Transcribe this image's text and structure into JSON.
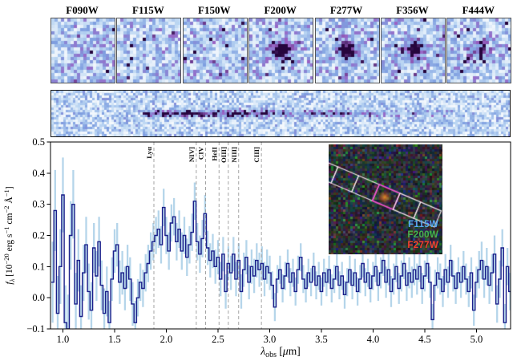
{
  "cutouts": {
    "filters": [
      {
        "label": "F090W",
        "source_strength": 0
      },
      {
        "label": "F115W",
        "source_strength": 0
      },
      {
        "label": "F150W",
        "source_strength": 0
      },
      {
        "label": "F200W",
        "source_strength": 1.15
      },
      {
        "label": "F277W",
        "source_strength": 1.05
      },
      {
        "label": "F356W",
        "source_strength": 0.95
      },
      {
        "label": "F444W",
        "source_strength": 0.55
      }
    ],
    "colormap": [
      "#ffffff",
      "#b8d4f2",
      "#7f9fe0",
      "#9a62c4",
      "#26053d"
    ]
  },
  "spectrum_2d": {
    "trace_segments": [
      [
        112,
        267,
        0.85
      ],
      [
        267,
        407,
        0.5
      ],
      [
        407,
        500,
        0.25
      ]
    ]
  },
  "inset": {
    "legend": [
      {
        "label": "F115W",
        "color": "#58aaf0"
      },
      {
        "label": "F200W",
        "color": "#46b04e"
      },
      {
        "label": "F277W",
        "color": "#f4402c"
      }
    ],
    "slit_color": "#f2e4ea",
    "highlight_color": "#ee52cc",
    "source_color": "#e0782a"
  },
  "chart_data": {
    "type": "line",
    "title": "",
    "xlabel": "λobs [μm]",
    "ylabel": "fλ [10−20 erg s−1 cm−2 Å−1]",
    "xlabel_segments": [
      {
        "t": "λ",
        "italic": true
      },
      {
        "t": "obs",
        "sub": true
      },
      {
        "t": " ["
      },
      {
        "t": "μ",
        "italic": true
      },
      {
        "t": "m]"
      }
    ],
    "ylabel_segments": [
      {
        "t": "f",
        "italic": true
      },
      {
        "t": "λ",
        "sub": true,
        "italic": true
      },
      {
        "t": " [10"
      },
      {
        "t": "−20",
        "sup": true
      },
      {
        "t": " erg s"
      },
      {
        "t": "−1",
        "sup": true
      },
      {
        "t": " cm"
      },
      {
        "t": "−2",
        "sup": true
      },
      {
        "t": " Å"
      },
      {
        "t": "−1",
        "sup": true
      },
      {
        "t": "]"
      }
    ],
    "xlim": [
      0.88,
      5.33
    ],
    "ylim": [
      -0.1,
      0.5
    ],
    "xticks": [
      1.0,
      1.5,
      2.0,
      2.5,
      3.0,
      3.5,
      4.0,
      4.5,
      5.0
    ],
    "yticks": [
      -0.1,
      0.0,
      0.1,
      0.2,
      0.3,
      0.4,
      0.5
    ],
    "grid": false,
    "legend_position": "inset image, lower right",
    "line_color": "#1b1f8a",
    "error_color": "#b5d5ea",
    "dashed_line_color": "#9a9a9a",
    "emission_lines": [
      {
        "label": "Lyα",
        "wavelength_um": 1.88
      },
      {
        "label": "NIV]",
        "wavelength_um": 2.29
      },
      {
        "label": "CIV",
        "wavelength_um": 2.38
      },
      {
        "label": "HeII",
        "wavelength_um": 2.51
      },
      {
        "label": "OIII]",
        "wavelength_um": 2.6
      },
      {
        "label": "NIII]",
        "wavelength_um": 2.7
      },
      {
        "label": "CIII]",
        "wavelength_um": 2.92
      }
    ],
    "x_start_um": 0.9,
    "x_step_um": 0.025,
    "flux": [
      0.05,
      0.28,
      -0.05,
      0.1,
      0.33,
      -0.08,
      -0.1,
      0.2,
      0.3,
      -0.02,
      0.12,
      -0.06,
      0.08,
      0.17,
      0.02,
      -0.04,
      0.16,
      0.07,
      0.18,
      0.04,
      -0.05,
      0.02,
      -0.08,
      0.06,
      0.15,
      0.17,
      0.05,
      0.08,
      0.03,
      0.1,
      0.06,
      -0.02,
      -0.08,
      0.0,
      0.05,
      0.03,
      0.08,
      0.11,
      0.15,
      0.18,
      0.2,
      0.22,
      0.17,
      0.29,
      0.2,
      0.15,
      0.24,
      0.26,
      0.18,
      0.22,
      0.15,
      0.2,
      0.13,
      0.17,
      0.21,
      0.31,
      0.18,
      0.14,
      0.19,
      0.27,
      0.16,
      0.12,
      0.15,
      0.1,
      0.13,
      0.06,
      0.14,
      0.02,
      0.11,
      0.08,
      0.14,
      0.06,
      0.12,
      0.02,
      0.09,
      0.13,
      0.05,
      0.1,
      0.07,
      0.12,
      0.09,
      0.11,
      0.06,
      0.1,
      0.08,
      0.04,
      -0.03,
      0.06,
      0.09,
      0.03,
      0.07,
      0.11,
      0.05,
      0.08,
      0.02,
      0.09,
      0.13,
      0.06,
      0.03,
      0.08,
      0.05,
      0.1,
      0.04,
      0.07,
      0.02,
      0.08,
      0.05,
      0.09,
      0.03,
      0.06,
      0.1,
      0.04,
      0.07,
      0.01,
      0.05,
      0.09,
      0.04,
      0.08,
      0.02,
      0.06,
      0.11,
      0.05,
      0.08,
      0.03,
      0.07,
      0.1,
      0.04,
      0.08,
      0.12,
      0.05,
      0.09,
      0.02,
      0.06,
      0.1,
      0.03,
      0.07,
      0.11,
      0.04,
      0.08,
      0.05,
      0.09,
      0.06,
      0.1,
      0.03,
      0.07,
      0.11,
      0.05,
      -0.07,
      0.04,
      0.08,
      0.06,
      0.02,
      0.09,
      0.05,
      0.12,
      0.07,
      0.03,
      0.08,
      0.05,
      0.1,
      0.06,
      0.02,
      0.08,
      -0.04,
      0.05,
      0.09,
      0.12,
      0.06,
      0.1,
      0.04,
      0.08,
      0.14,
      -0.02,
      0.06,
      0.16,
      -0.08,
      0.1,
      0.02
    ],
    "flux_err": [
      0.13,
      0.13,
      0.12,
      0.12,
      0.12,
      0.12,
      0.11,
      0.11,
      0.11,
      0.1,
      0.1,
      0.1,
      0.09,
      0.09,
      0.09,
      0.09,
      0.08,
      0.08,
      0.08,
      0.08,
      0.08,
      0.08,
      0.07,
      0.07,
      0.07,
      0.07,
      0.07,
      0.07,
      0.07,
      0.07,
      0.07,
      0.07,
      0.07,
      0.06,
      0.06,
      0.06,
      0.06,
      0.06,
      0.06,
      0.06,
      0.06,
      0.06,
      0.06,
      0.06,
      0.06,
      0.06,
      0.06,
      0.06,
      0.06,
      0.06,
      0.06,
      0.06,
      0.06,
      0.06,
      0.06,
      0.06,
      0.06,
      0.06,
      0.06,
      0.06,
      0.055,
      0.055,
      0.055,
      0.055,
      0.055,
      0.055,
      0.055,
      0.055,
      0.055,
      0.055,
      0.055,
      0.055,
      0.055,
      0.055,
      0.055,
      0.055,
      0.055,
      0.055,
      0.055,
      0.055,
      0.055,
      0.055,
      0.055,
      0.055,
      0.055,
      0.045,
      0.045,
      0.045,
      0.045,
      0.045,
      0.045,
      0.045,
      0.045,
      0.045,
      0.045,
      0.045,
      0.045,
      0.045,
      0.045,
      0.045,
      0.045,
      0.045,
      0.045,
      0.045,
      0.045,
      0.045,
      0.045,
      0.045,
      0.045,
      0.045,
      0.045,
      0.045,
      0.045,
      0.045,
      0.045,
      0.045,
      0.045,
      0.045,
      0.045,
      0.045,
      0.045,
      0.045,
      0.045,
      0.045,
      0.045,
      0.05,
      0.05,
      0.05,
      0.05,
      0.05,
      0.05,
      0.05,
      0.05,
      0.05,
      0.05,
      0.05,
      0.05,
      0.05,
      0.05,
      0.05,
      0.05,
      0.05,
      0.05,
      0.05,
      0.05,
      0.05,
      0.05,
      0.05,
      0.05,
      0.05,
      0.05,
      0.05,
      0.05,
      0.05,
      0.05,
      0.05,
      0.05,
      0.05,
      0.05,
      0.05,
      0.05,
      0.05,
      0.05,
      0.05,
      0.05,
      0.06,
      0.06,
      0.06,
      0.06,
      0.06,
      0.06,
      0.06,
      0.06,
      0.06,
      0.06,
      0.06,
      0.06,
      0.06
    ]
  }
}
